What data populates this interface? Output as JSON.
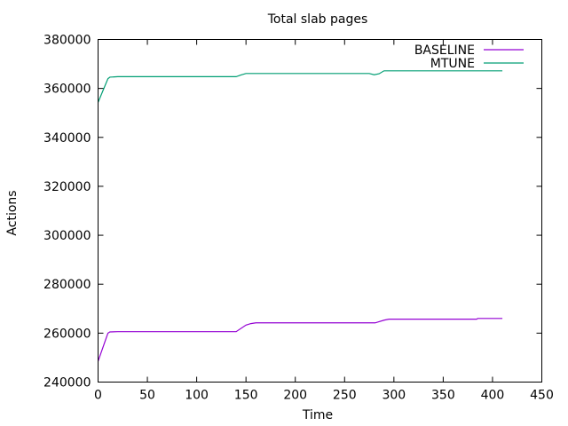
{
  "chart_data": {
    "type": "line",
    "title": "Total slab pages",
    "xlabel": "Time",
    "ylabel": "Actions",
    "xlim": [
      0,
      450
    ],
    "ylim": [
      240000,
      380000
    ],
    "xticks": [
      0,
      50,
      100,
      150,
      200,
      250,
      300,
      350,
      400,
      450
    ],
    "yticks": [
      240000,
      260000,
      280000,
      300000,
      320000,
      340000,
      360000,
      380000
    ],
    "grid": false,
    "legend_position": "top-right",
    "series": [
      {
        "name": "BASELINE",
        "color": "#9400d3",
        "points": [
          [
            0,
            248500
          ],
          [
            10,
            260000
          ],
          [
            12,
            260500
          ],
          [
            20,
            260600
          ],
          [
            140,
            260600
          ],
          [
            150,
            263300
          ],
          [
            155,
            263900
          ],
          [
            160,
            264200
          ],
          [
            281,
            264200
          ],
          [
            285,
            264700
          ],
          [
            290,
            265300
          ],
          [
            295,
            265700
          ],
          [
            384,
            265700
          ],
          [
            385,
            266000
          ],
          [
            410,
            266000
          ]
        ]
      },
      {
        "name": "MTUNE",
        "color": "#009e73",
        "points": [
          [
            0,
            354300
          ],
          [
            10,
            364000
          ],
          [
            12,
            364600
          ],
          [
            20,
            364800
          ],
          [
            140,
            364800
          ],
          [
            145,
            365500
          ],
          [
            150,
            366100
          ],
          [
            275,
            366100
          ],
          [
            280,
            365600
          ],
          [
            285,
            366000
          ],
          [
            290,
            367200
          ],
          [
            410,
            367200
          ]
        ]
      }
    ]
  }
}
